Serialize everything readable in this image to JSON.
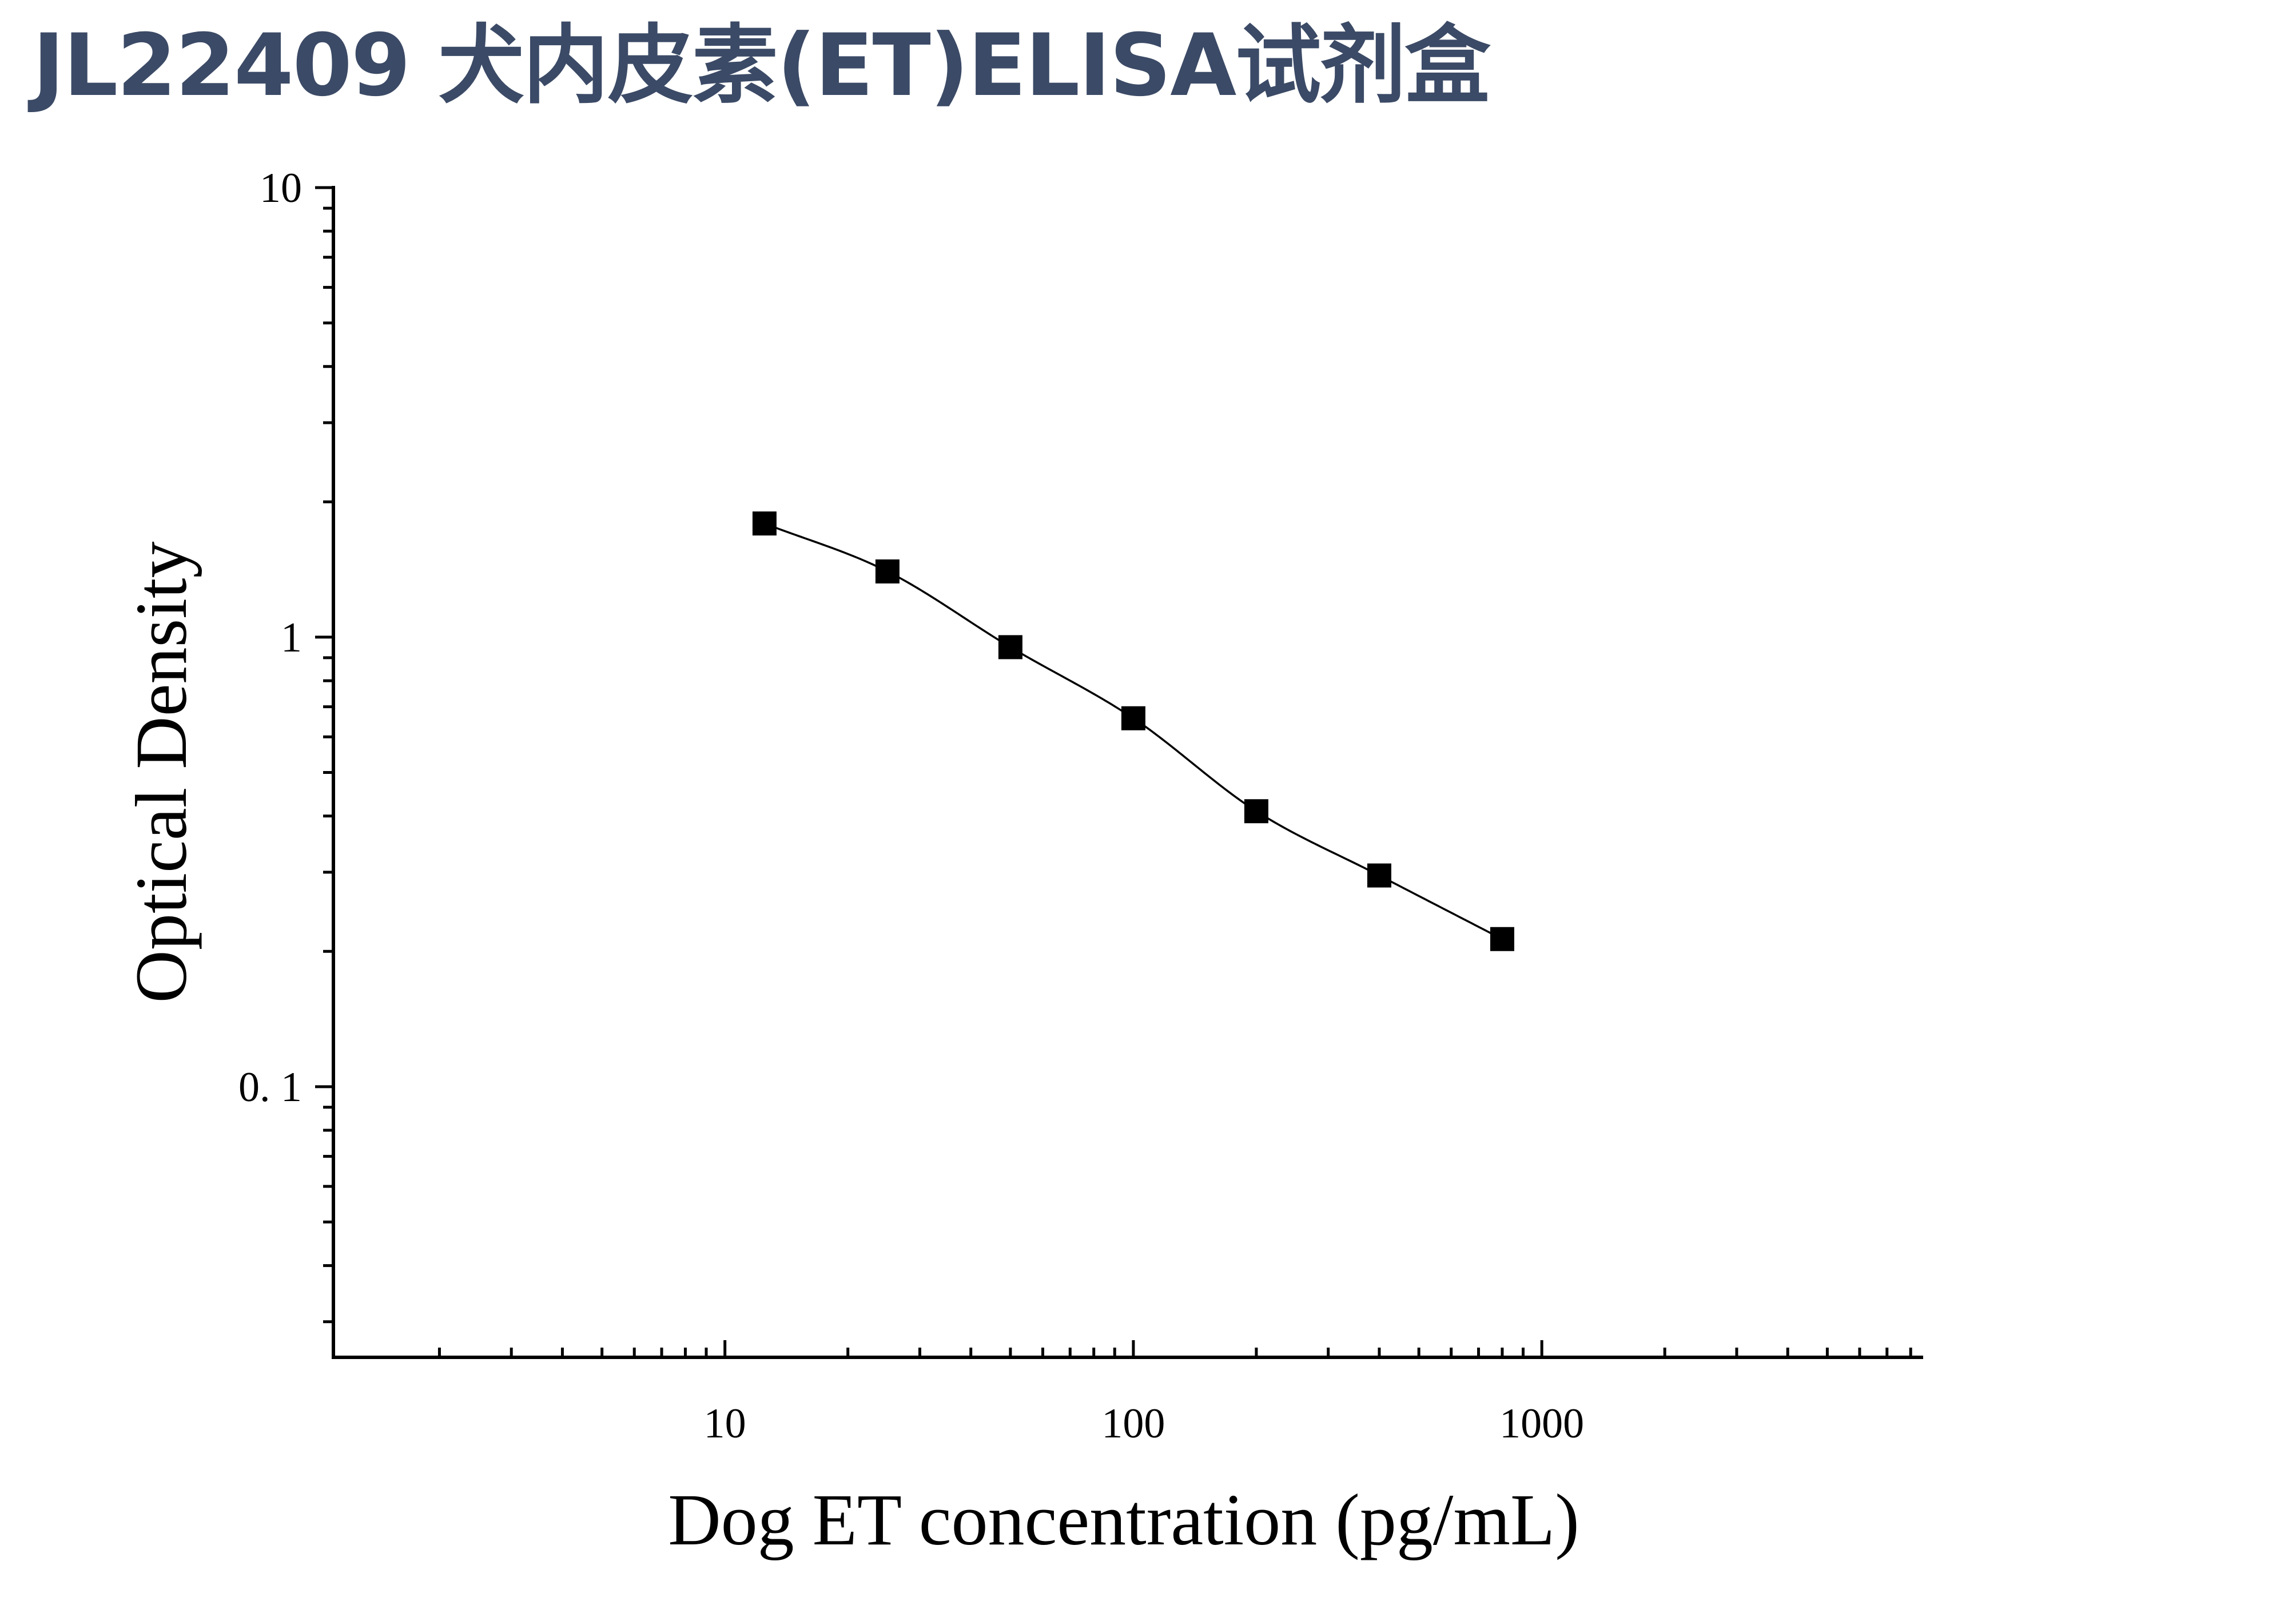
{
  "title": "JL22409 犬内皮素(ET)ELISA试剂盒",
  "colors": {
    "title": "#3b4a66",
    "axis": "#000000",
    "marker": "#000000",
    "curve": "#000000"
  },
  "chart_data": {
    "type": "scatter",
    "xlabel": "Dog ET concentration (pg/mL)",
    "ylabel": "Optical Density",
    "xscale": "log",
    "yscale": "log",
    "xlim": [
      1.1,
      8500
    ],
    "ylim": [
      0.025,
      10
    ],
    "x_ticks": [
      {
        "value": 10,
        "label": "10"
      },
      {
        "value": 100,
        "label": "100"
      },
      {
        "value": 1000,
        "label": "1000"
      }
    ],
    "y_ticks": [
      {
        "value": 0.1,
        "label": "0. 1"
      },
      {
        "value": 1,
        "label": "1"
      },
      {
        "value": 10,
        "label": "10"
      }
    ],
    "grid": false,
    "legend": "none",
    "marker": "square",
    "fit_curve": "smooth",
    "series": [
      {
        "x": [
          12.5,
          25,
          50,
          100,
          200,
          400,
          800
        ],
        "y": [
          1.79,
          1.4,
          0.95,
          0.66,
          0.41,
          0.295,
          0.213
        ]
      }
    ]
  }
}
